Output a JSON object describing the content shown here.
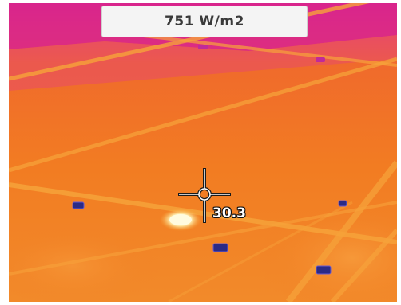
{
  "readouts": {
    "irradiance": "751 W/m2",
    "spot_temperature": "30.3"
  },
  "colors": {
    "panel_orange": "#f07a1e",
    "hot_magenta": "#d8248c",
    "panel_seam": "#f6a23a",
    "hotspot_white": "#fff8d0",
    "junction_blue": "#2a2a8a"
  }
}
